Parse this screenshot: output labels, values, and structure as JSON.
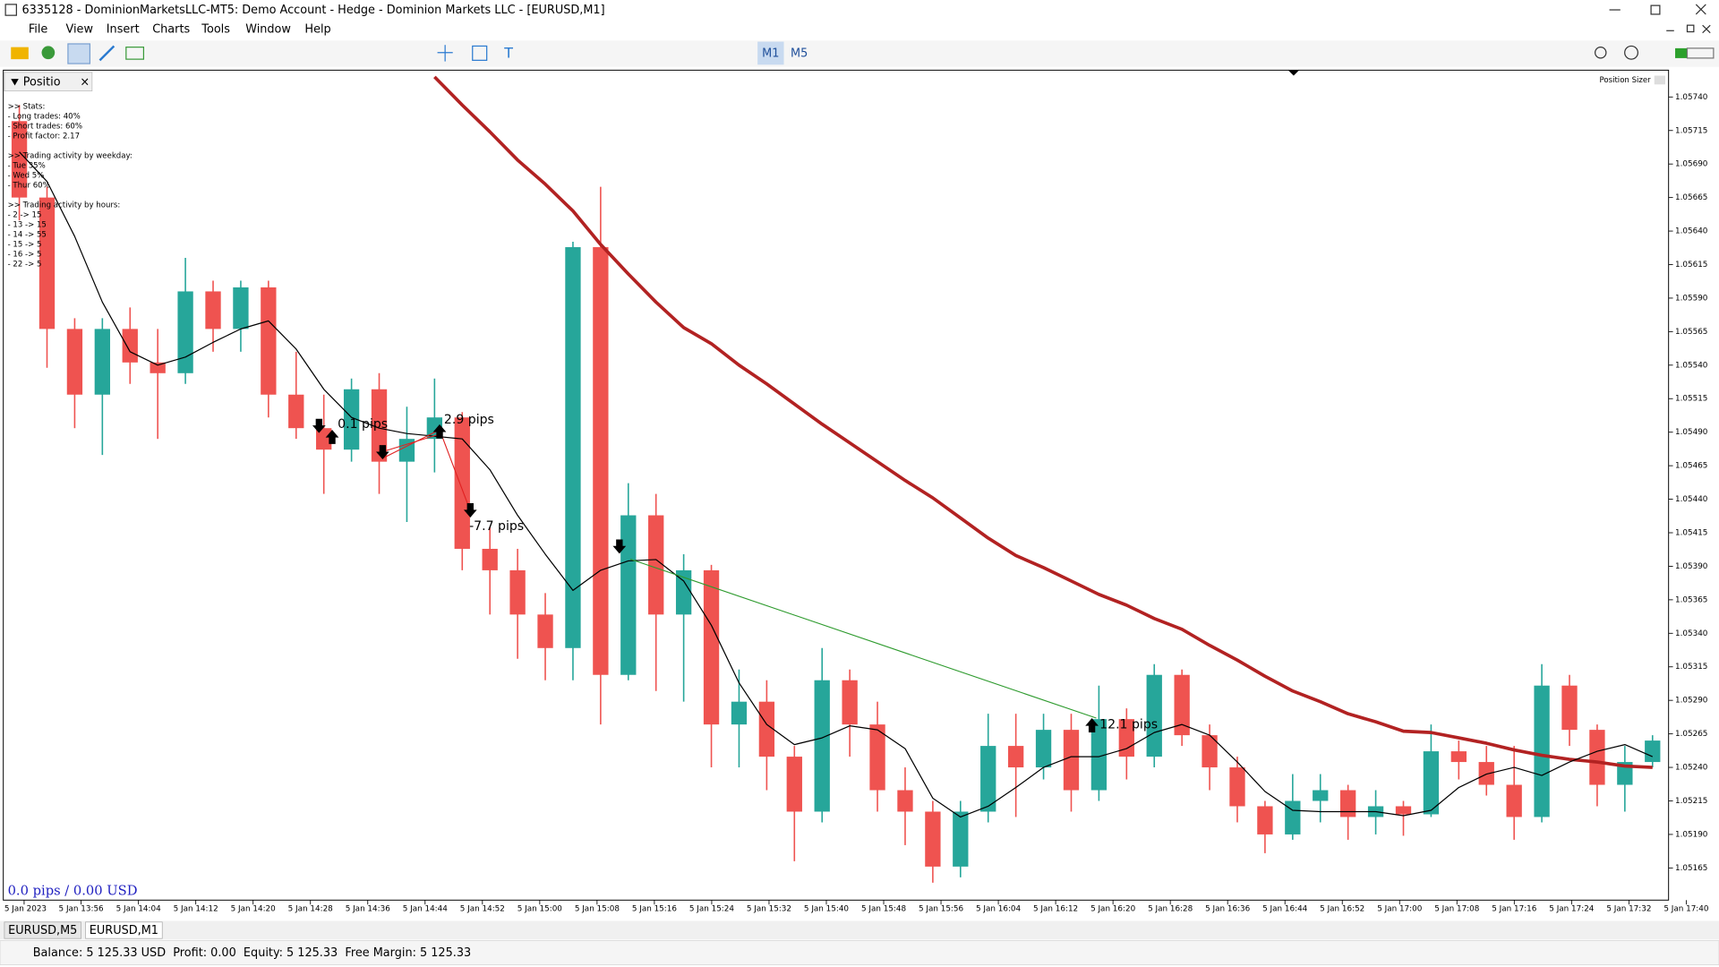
{
  "window": {
    "title": "6335128 - DominionMarketsLLC-MT5: Demo Account - Hedge - Dominion Markets LLC - [EURUSD,M1]"
  },
  "menu": [
    "File",
    "View",
    "Insert",
    "Charts",
    "Tools",
    "Window",
    "Help"
  ],
  "toolbar": {
    "timeframes": [
      "M1",
      "M5"
    ]
  },
  "panel": {
    "title": "Positio",
    "stats": [
      [
        ">> Stats:",
        "- Long trades: 40%",
        "- Short trades: 60%",
        "- Profit factor: 2.17"
      ],
      [
        ">> Trading activity by weekday:",
        "- Tue 35%",
        "- Wed 5%",
        "- Thur 60%"
      ],
      [
        ">> Trading activity by hours:",
        "- 2 -> 15",
        "- 13 -> 15",
        "- 14 -> 55",
        "- 15 -> 5",
        "- 16 -> 5",
        "- 22 -> 5"
      ]
    ]
  },
  "chart_data": {
    "type": "candlestick",
    "indicator": "Position Sizer",
    "summary": "0.0 pips / 0.00 USD",
    "up_color": "#26a69a",
    "down_color": "#ef5350",
    "ylim": [
      1.05141,
      1.0576
    ],
    "yticks": [
      {
        "value": 1.0574,
        "label": "1.05740"
      },
      {
        "value": 1.05715,
        "label": "1.05715"
      },
      {
        "value": 1.0569,
        "label": "1.05690"
      },
      {
        "value": 1.05665,
        "label": "1.05665"
      },
      {
        "value": 1.0564,
        "label": "1.05640"
      },
      {
        "value": 1.05615,
        "label": "1.05615"
      },
      {
        "value": 1.0559,
        "label": "1.05590"
      },
      {
        "value": 1.05565,
        "label": "1.05565"
      },
      {
        "value": 1.0554,
        "label": "1.05540"
      },
      {
        "value": 1.05515,
        "label": "1.05515"
      },
      {
        "value": 1.0549,
        "label": "1.05490"
      },
      {
        "value": 1.05465,
        "label": "1.05465"
      },
      {
        "value": 1.0544,
        "label": "1.05440"
      },
      {
        "value": 1.05415,
        "label": "1.05415"
      },
      {
        "value": 1.0539,
        "label": "1.05390"
      },
      {
        "value": 1.05365,
        "label": "1.05365"
      },
      {
        "value": 1.0534,
        "label": "1.05340"
      },
      {
        "value": 1.05315,
        "label": "1.05315"
      },
      {
        "value": 1.0529,
        "label": "1.05290"
      },
      {
        "value": 1.05265,
        "label": "1.05265"
      },
      {
        "value": 1.0524,
        "label": "1.05240"
      },
      {
        "value": 1.05215,
        "label": "1.05215"
      },
      {
        "value": 1.0519,
        "label": "1.05190"
      },
      {
        "value": 1.05165,
        "label": "1.05165"
      }
    ],
    "x_labels": [
      "5 Jan 2023",
      "5 Jan 13:56",
      "5 Jan 14:04",
      "5 Jan 14:12",
      "5 Jan 14:20",
      "5 Jan 14:28",
      "5 Jan 14:36",
      "5 Jan 14:44",
      "5 Jan 14:52",
      "5 Jan 15:00",
      "5 Jan 15:08",
      "5 Jan 15:16",
      "5 Jan 15:24",
      "5 Jan 15:32",
      "5 Jan 15:40",
      "5 Jan 15:48",
      "5 Jan 15:56",
      "5 Jan 16:04",
      "5 Jan 16:12",
      "5 Jan 16:20",
      "5 Jan 16:28",
      "5 Jan 16:36",
      "5 Jan 16:44",
      "5 Jan 16:52",
      "5 Jan 17:00",
      "5 Jan 17:08",
      "5 Jan 17:16",
      "5 Jan 17:24",
      "5 Jan 17:32",
      "5 Jan 17:40"
    ],
    "open": [
      1.05722,
      1.05665,
      1.05567,
      1.05518,
      1.05567,
      1.05542,
      1.05534,
      1.05595,
      1.05567,
      1.05598,
      1.05518,
      1.05493,
      1.05477,
      1.05522,
      1.05468,
      1.05485,
      1.05501,
      1.05403,
      1.05387,
      1.05354,
      1.05329,
      1.05628,
      1.05309,
      1.05428,
      1.05354,
      1.05387,
      1.05272,
      1.05289,
      1.05248,
      1.05207,
      1.05305,
      1.05272,
      1.05223,
      1.05207,
      1.05166,
      1.05207,
      1.05256,
      1.0524,
      1.05268,
      1.05223,
      1.05276,
      1.05248,
      1.05309,
      1.05264,
      1.0524,
      1.05211,
      1.0519,
      1.05215,
      1.05223,
      1.05203,
      1.05211,
      1.05205,
      1.05252,
      1.05244,
      1.05227,
      1.05203,
      1.05301,
      1.05268,
      1.05227,
      1.05244
    ],
    "high": [
      1.05734,
      1.05673,
      1.05575,
      1.05575,
      1.05583,
      1.05567,
      1.0562,
      1.05603,
      1.05603,
      1.05603,
      1.0555,
      1.05518,
      1.0553,
      1.05534,
      1.05509,
      1.0553,
      1.05505,
      1.05419,
      1.05403,
      1.0537,
      1.05632,
      1.05673,
      1.05452,
      1.05444,
      1.05399,
      1.05391,
      1.05313,
      1.05305,
      1.05256,
      1.05329,
      1.05313,
      1.05289,
      1.0524,
      1.05215,
      1.05215,
      1.0528,
      1.0528,
      1.0528,
      1.0528,
      1.05301,
      1.05284,
      1.05317,
      1.05313,
      1.05272,
      1.05248,
      1.05215,
      1.05235,
      1.05235,
      1.05227,
      1.05223,
      1.05215,
      1.05272,
      1.0526,
      1.05256,
      1.05256,
      1.05317,
      1.05309,
      1.05272,
      1.05256,
      1.05264
    ],
    "low": [
      1.05648,
      1.05538,
      1.05493,
      1.05473,
      1.05526,
      1.05485,
      1.05526,
      1.0555,
      1.0555,
      1.05501,
      1.05485,
      1.05444,
      1.05468,
      1.05444,
      1.05423,
      1.0546,
      1.05387,
      1.05354,
      1.05321,
      1.05305,
      1.05305,
      1.05272,
      1.05305,
      1.05297,
      1.05289,
      1.0524,
      1.0524,
      1.05223,
      1.0517,
      1.05199,
      1.05248,
      1.05207,
      1.05182,
      1.05154,
      1.05158,
      1.05199,
      1.05203,
      1.05231,
      1.05207,
      1.05215,
      1.05231,
      1.0524,
      1.05256,
      1.05223,
      1.05199,
      1.05176,
      1.05186,
      1.05199,
      1.05186,
      1.0519,
      1.05189,
      1.05203,
      1.05231,
      1.05219,
      1.05186,
      1.05199,
      1.05256,
      1.05211,
      1.05207,
      1.0524
    ],
    "close": [
      1.05665,
      1.05567,
      1.05518,
      1.05567,
      1.05542,
      1.05534,
      1.05595,
      1.05567,
      1.05598,
      1.05518,
      1.05493,
      1.05477,
      1.05522,
      1.05468,
      1.05485,
      1.05501,
      1.05403,
      1.05387,
      1.05354,
      1.05329,
      1.05628,
      1.05309,
      1.05428,
      1.05354,
      1.05387,
      1.05272,
      1.05289,
      1.05248,
      1.05207,
      1.05305,
      1.05272,
      1.05223,
      1.05207,
      1.05166,
      1.05207,
      1.05256,
      1.0524,
      1.05268,
      1.05223,
      1.05276,
      1.05248,
      1.05309,
      1.05264,
      1.0524,
      1.05211,
      1.0519,
      1.05215,
      1.05223,
      1.05203,
      1.05211,
      1.05205,
      1.05252,
      1.05244,
      1.05227,
      1.05203,
      1.05301,
      1.05268,
      1.05227,
      1.05244,
      1.0526
    ],
    "lines": [
      {
        "color": "#b22222",
        "values": [
          null,
          null,
          null,
          null,
          null,
          null,
          null,
          null,
          null,
          null,
          null,
          null,
          null,
          null,
          null,
          1.05755,
          1.05734,
          1.05714,
          1.05693,
          1.05675,
          1.05655,
          1.0563,
          1.05608,
          1.05587,
          1.05568,
          1.05556,
          1.0554,
          1.05526,
          1.05511,
          1.05496,
          1.05482,
          1.05468,
          1.05454,
          1.05441,
          1.05426,
          1.05411,
          1.05398,
          1.05389,
          1.05379,
          1.05369,
          1.05361,
          1.05351,
          1.05343,
          1.05331,
          1.0532,
          1.05308,
          1.05297,
          1.05289,
          1.0528,
          1.05274,
          1.05267,
          1.05266,
          1.05262,
          1.05258,
          1.05253,
          1.05249,
          1.05246,
          1.05244,
          1.05241,
          1.0524
        ]
      },
      {
        "color": "#000000",
        "values": [
          1.05699,
          1.05677,
          1.05636,
          1.05587,
          1.0555,
          1.0554,
          1.05546,
          1.05557,
          1.05567,
          1.05573,
          1.05552,
          1.05522,
          1.05501,
          1.05493,
          1.05489,
          1.05487,
          1.05485,
          1.05462,
          1.05428,
          1.05399,
          1.05372,
          1.05387,
          1.05394,
          1.05395,
          1.05379,
          1.05346,
          1.05303,
          1.05272,
          1.05257,
          1.05262,
          1.05271,
          1.05268,
          1.05254,
          1.05217,
          1.05203,
          1.05211,
          1.05225,
          1.0524,
          1.05248,
          1.05248,
          1.05254,
          1.05266,
          1.05272,
          1.05264,
          1.05244,
          1.05222,
          1.05208,
          1.05207,
          1.05207,
          1.05207,
          1.05204,
          1.05208,
          1.05225,
          1.05235,
          1.0524,
          1.05234,
          1.05244,
          1.05252,
          1.05257,
          1.05248
        ]
      }
    ],
    "trade_labels": [
      "0.1 pips",
      "2.9 pips",
      "-7.7 pips",
      "12.1 pips"
    ]
  },
  "tabs": [
    "EURUSD,M5",
    "EURUSD,M1"
  ],
  "status": "Balance: 5 125.33 USD  Profit: 0.00  Equity: 5 125.33  Free Margin: 5 125.33"
}
